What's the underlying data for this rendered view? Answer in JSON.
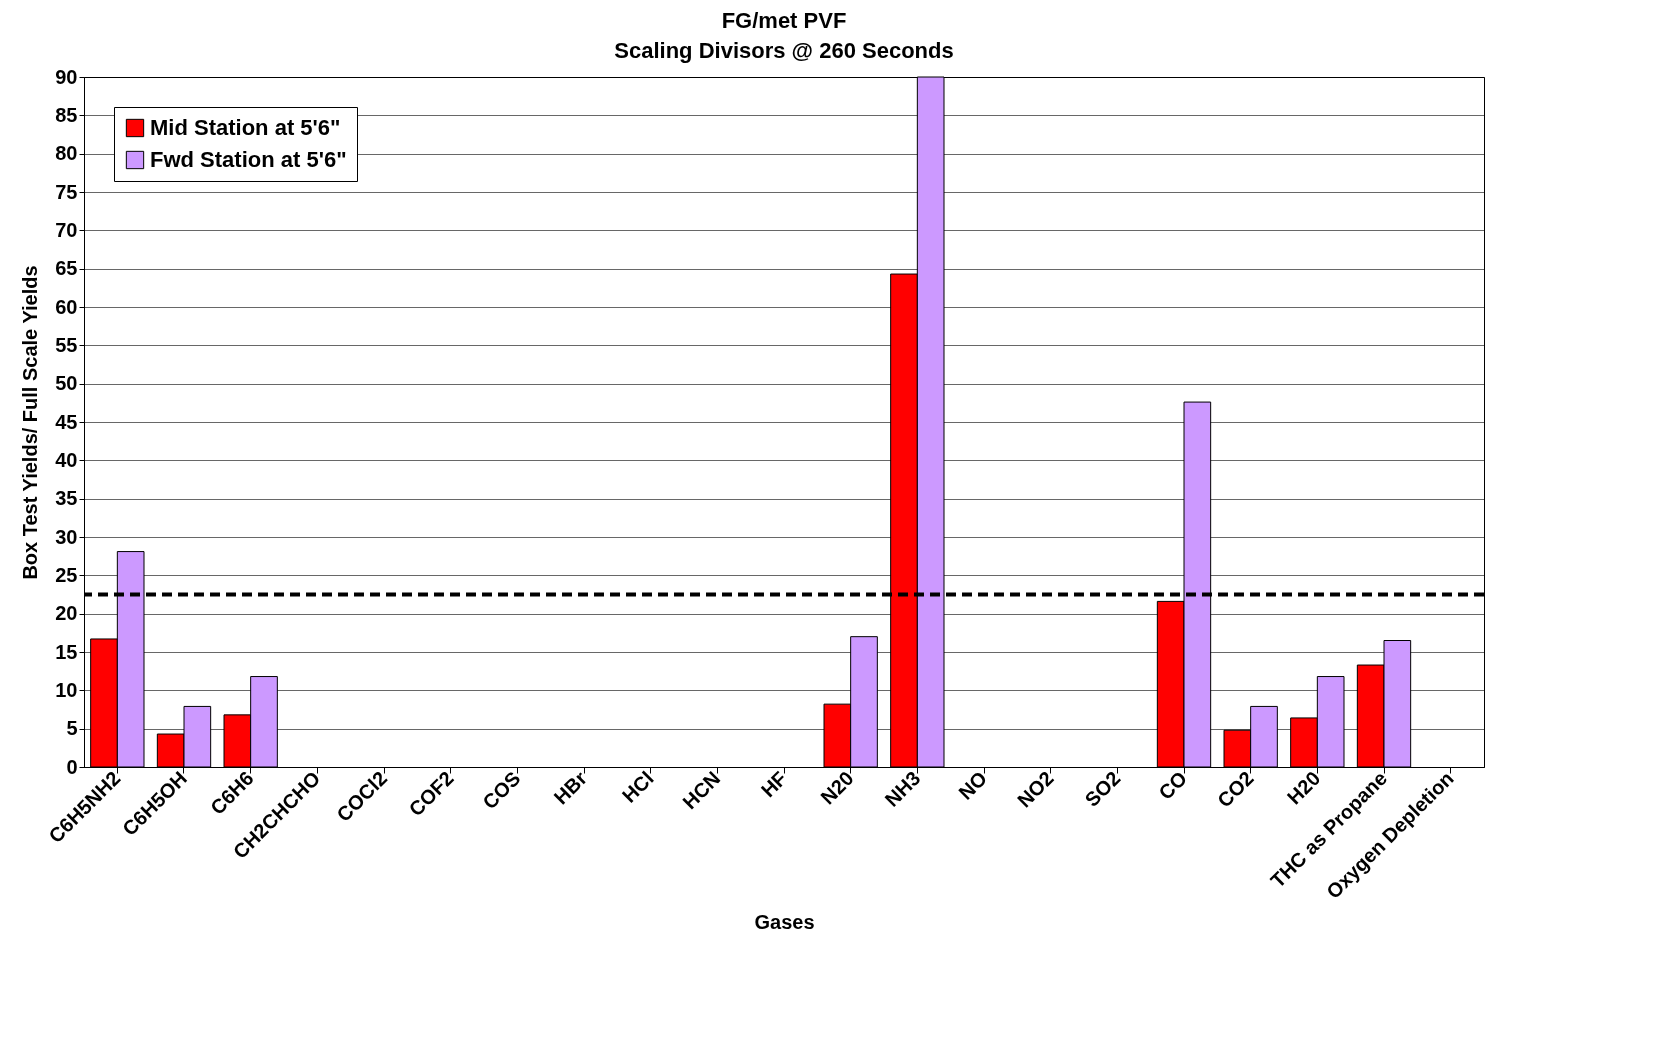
{
  "chart_data": {
    "type": "bar",
    "title": "FG/met PVF",
    "subtitle": "Scaling Divisors @ 260 Seconds",
    "xlabel": "Gases",
    "ylabel": "Box Test Yields/ Full Scale Yields",
    "categories": [
      "C6H5NH2",
      "C6H5OH",
      "C6H6",
      "CH2CHCHO",
      "COCl2",
      "COF2",
      "COS",
      "HBr",
      "HCl",
      "HCN",
      "HF",
      "N20",
      "NH3",
      "NO",
      "NO2",
      "SO2",
      "CO",
      "CO2",
      "H20",
      "THC as Propane",
      "Oxygen Depletion"
    ],
    "series": [
      {
        "name": "Mid Station at 5'6\"",
        "color": "#ff0000",
        "values": [
          16.7,
          4.3,
          6.8,
          null,
          null,
          null,
          null,
          null,
          null,
          null,
          null,
          8.2,
          64.3,
          null,
          null,
          null,
          21.6,
          4.8,
          6.4,
          13.3,
          null
        ]
      },
      {
        "name": "Fwd Station at 5'6\"",
        "color": "#cc99ff",
        "values": [
          28.1,
          7.9,
          11.8,
          null,
          null,
          null,
          null,
          null,
          null,
          null,
          null,
          17.0,
          90,
          null,
          null,
          null,
          47.6,
          7.9,
          11.8,
          16.5,
          null
        ]
      }
    ],
    "ylim": [
      0,
      90
    ],
    "yticks": [
      0,
      5,
      10,
      15,
      20,
      25,
      30,
      35,
      40,
      45,
      50,
      55,
      60,
      65,
      70,
      75,
      80,
      85,
      90
    ],
    "grid": "y",
    "legend": "top left",
    "ref_lines": [
      {
        "axis": "y",
        "value": 22.5,
        "color": "#000000",
        "line_style": "dashed"
      }
    ]
  }
}
